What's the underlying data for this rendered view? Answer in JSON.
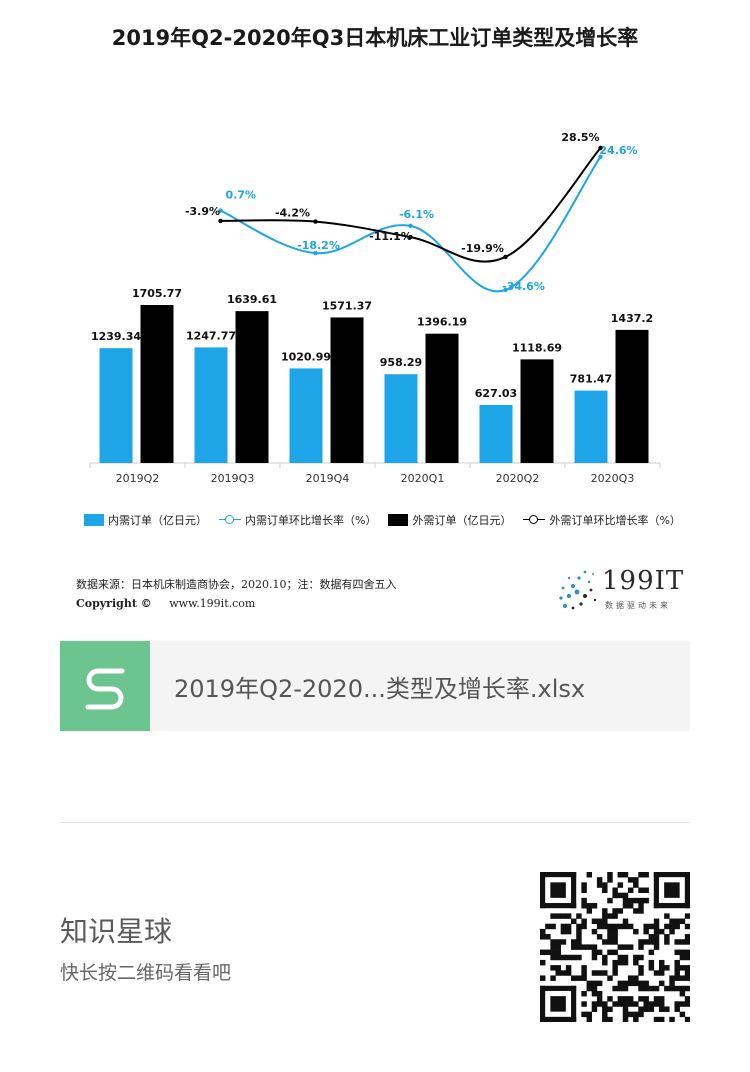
{
  "page_title": "2019年Q2-2020年Q3日本机床工业订单类型及增长率",
  "chart_data": {
    "type": "bar+line",
    "title": "2019年Q2-2020年Q3日本机床工业订单类型及增长率",
    "categories": [
      "2019Q2",
      "2019Q3",
      "2019Q4",
      "2020Q1",
      "2020Q2",
      "2020Q3"
    ],
    "bar_series": [
      {
        "name": "内需订单（亿日元）",
        "values": [
          1239.34,
          1247.77,
          1020.99,
          958.29,
          627.03,
          781.47
        ],
        "labels": [
          "1239.34",
          "1247.77",
          "1020.99",
          "958.29",
          "627.03",
          "781.47"
        ],
        "color": "#1ea5e8"
      },
      {
        "name": "外需订单（亿日元）",
        "values": [
          1705.77,
          1639.61,
          1571.37,
          1396.19,
          1118.69,
          1437.2
        ],
        "labels": [
          "1705.77",
          "1639.61",
          "1571.37",
          "1396.19",
          "1118.69",
          "1437.2"
        ],
        "color": "#000000"
      }
    ],
    "line_series": [
      {
        "name": "内需订单环比增长率（%）",
        "x": [
          "2019Q3",
          "2019Q4",
          "2020Q1",
          "2020Q2",
          "2020Q3"
        ],
        "values": [
          0.7,
          -18.2,
          -6.1,
          -34.6,
          24.6
        ],
        "labels": [
          "0.7%",
          "-18.2%",
          "-6.1%",
          "-34.6%",
          "24.6%"
        ],
        "color": "#1ea5e8"
      },
      {
        "name": "外需订单环比增长率（%）",
        "x": [
          "2019Q3",
          "2019Q4",
          "2020Q1",
          "2020Q2",
          "2020Q3"
        ],
        "values": [
          -3.9,
          -4.2,
          -11.1,
          -19.9,
          28.5
        ],
        "labels": [
          "-3.9%",
          "-4.2%",
          "-11.1%",
          "-19.9%",
          "28.5%"
        ],
        "color": "#000000"
      }
    ],
    "bar_ylim": [
      0,
      1900
    ],
    "line_ylim": [
      -40,
      30
    ],
    "legend_position": "bottom",
    "grid": false
  },
  "legend": {
    "domestic_bar": "内需订单（亿日元）",
    "domestic_rate": "内需订单环比增长率（%）",
    "foreign_bar": "外需订单（亿日元）",
    "foreign_rate": "外需订单环比增长率（%）"
  },
  "footer": {
    "source": "数据来源：日本机床制造商协会，2020.10；注：数据有四舍五入",
    "copyright_label": "Copyright ©",
    "website": "www.199it.com",
    "logo_text": "199IT",
    "logo_sub": "数据驱动未来"
  },
  "file_card": {
    "icon_letter": "S",
    "file_name": "2019年Q2-2020...类型及增长率.xlsx"
  },
  "promo": {
    "title": "知识星球",
    "subtitle": "快长按二维码看看吧"
  },
  "colors": {
    "domestic": "#1ea5e8",
    "foreign": "#000000",
    "file_icon_bg": "#6cc48e"
  }
}
